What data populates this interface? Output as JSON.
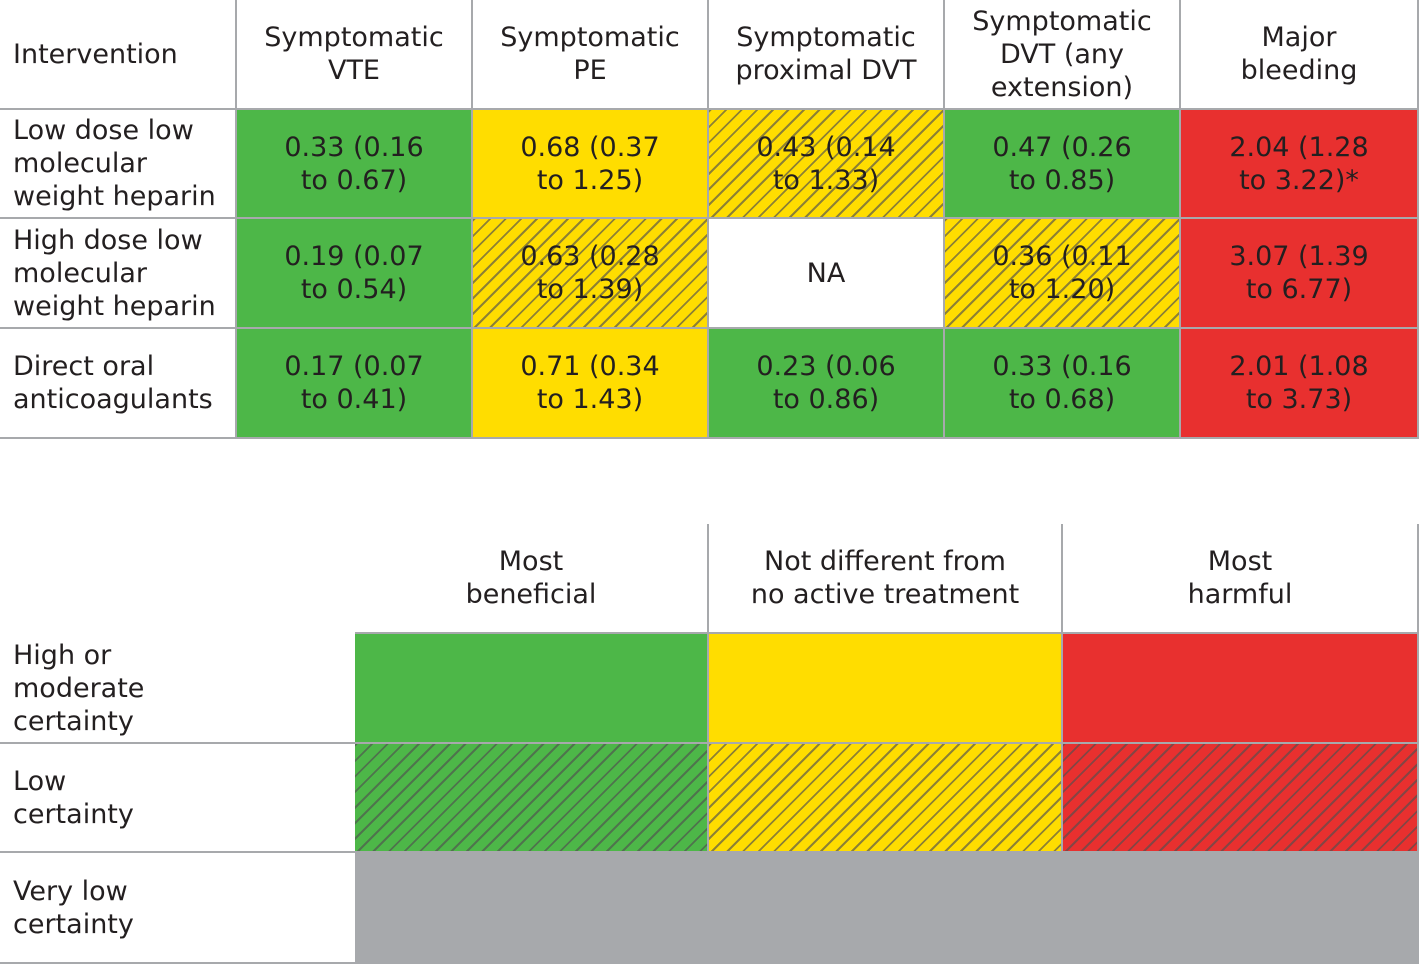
{
  "colors": {
    "most_beneficial": "#4db748",
    "not_different": "#ffdd00",
    "most_harmful": "#e8302f",
    "very_low": "#a7a9ac",
    "border": "#a7a9ac"
  },
  "chart_data": {
    "type": "table",
    "columns": [
      "Intervention",
      "Symptomatic\nVTE",
      "Symptomatic\nPE",
      "Symptomatic\nproximal DVT",
      "Symptomatic\nDVT (any\nextension)",
      "Major\nbleeding"
    ],
    "rows": [
      {
        "label": "Low dose low\nmolecular\nweight heparin",
        "cells": [
          {
            "text": "0.33 (0.16\nto 0.67)",
            "category": "most_beneficial",
            "certainty": "high_or_moderate"
          },
          {
            "text": "0.68 (0.37\nto 1.25)",
            "category": "not_different",
            "certainty": "high_or_moderate"
          },
          {
            "text": "0.43 (0.14\nto 1.33)",
            "category": "not_different",
            "certainty": "low"
          },
          {
            "text": "0.47 (0.26\nto 0.85)",
            "category": "most_beneficial",
            "certainty": "high_or_moderate"
          },
          {
            "text": "2.04 (1.28\nto 3.22)*",
            "category": "most_harmful",
            "certainty": "high_or_moderate"
          }
        ]
      },
      {
        "label": "High dose low\nmolecular\nweight heparin",
        "cells": [
          {
            "text": "0.19 (0.07\nto 0.54)",
            "category": "most_beneficial",
            "certainty": "high_or_moderate"
          },
          {
            "text": "0.63 (0.28\nto 1.39)",
            "category": "not_different",
            "certainty": "low"
          },
          {
            "text": "NA",
            "category": "none",
            "certainty": "none"
          },
          {
            "text": "0.36 (0.11\nto 1.20)",
            "category": "not_different",
            "certainty": "low"
          },
          {
            "text": "3.07 (1.39\nto 6.77)",
            "category": "most_harmful",
            "certainty": "high_or_moderate"
          }
        ]
      },
      {
        "label": "Direct oral\nanticoagulants",
        "cells": [
          {
            "text": "0.17 (0.07\nto 0.41)",
            "category": "most_beneficial",
            "certainty": "high_or_moderate"
          },
          {
            "text": "0.71 (0.34\nto 1.43)",
            "category": "not_different",
            "certainty": "high_or_moderate"
          },
          {
            "text": "0.23 (0.06\nto 0.86)",
            "category": "most_beneficial",
            "certainty": "high_or_moderate"
          },
          {
            "text": "0.33 (0.16\nto 0.68)",
            "category": "most_beneficial",
            "certainty": "high_or_moderate"
          },
          {
            "text": "2.01 (1.08\nto 3.73)",
            "category": "most_harmful",
            "certainty": "high_or_moderate"
          }
        ]
      }
    ],
    "legend": {
      "columns": [
        "Most\nbeneficial",
        "Not different from\nno active treatment",
        "Most\nharmful"
      ],
      "rows": [
        {
          "label": "High or\nmoderate\ncertainty",
          "pattern": "solid"
        },
        {
          "label": "Low\ncertainty",
          "pattern": "hatched"
        },
        {
          "label": "Very low\ncertainty",
          "pattern": "grey"
        }
      ]
    }
  }
}
